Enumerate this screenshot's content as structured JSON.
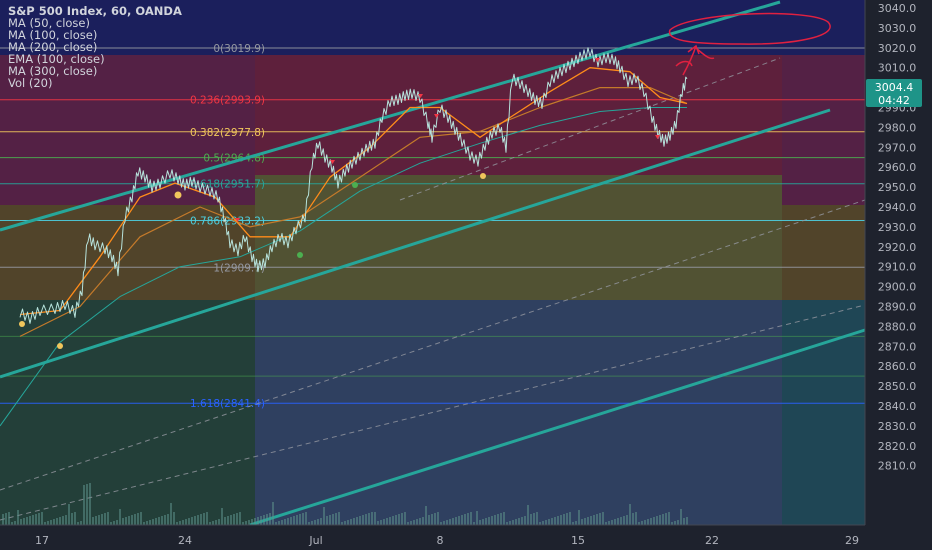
{
  "chart_data": {
    "type": "line",
    "title": "S&P 500 Index, 60, OANDA",
    "indicators": [
      "MA (50, close)",
      "MA (100, close)",
      "MA (200, close)",
      "EMA (100, close)",
      "MA (300, close)",
      "Vol (20)"
    ],
    "y_axis": {
      "ticks": [
        3040,
        3030,
        3020,
        3010,
        3000,
        2990,
        2980,
        2970,
        2960,
        2950,
        2940,
        2930,
        2920,
        2910,
        2900,
        2890,
        2880,
        2870,
        2860,
        2850,
        2840,
        2830,
        2820,
        2810
      ],
      "range": [
        2805,
        3044
      ]
    },
    "x_axis": {
      "tick_labels": [
        "17",
        "24",
        "Jul",
        "8",
        "15",
        "22",
        "29"
      ]
    },
    "last_price": "3004.4",
    "countdown": "04:42",
    "fib_levels": [
      {
        "label": "0(3019.9)",
        "value": 3019.9,
        "color": "#9598a1"
      },
      {
        "label": "0.236(2993.9)",
        "value": 2993.9,
        "color": "#f23645"
      },
      {
        "label": "0.382(2977.8)",
        "value": 2977.8,
        "color": "#f0c65c"
      },
      {
        "label": "0.5(2964.8)",
        "value": 2964.8,
        "color": "#4caf50"
      },
      {
        "label": "0.618(2951.7)",
        "value": 2951.7,
        "color": "#26a69a"
      },
      {
        "label": "0.786(2933.2)",
        "value": 2933.2,
        "color": "#4dd0e1"
      },
      {
        "label": "1(2909.7)",
        "value": 2909.7,
        "color": "#9598a1"
      },
      {
        "label": "1.618(2841.4)",
        "value": 2841.4,
        "color": "#2962ff"
      }
    ],
    "price_series": [
      [
        20,
        2887
      ],
      [
        30,
        2884
      ],
      [
        40,
        2888
      ],
      [
        55,
        2889
      ],
      [
        65,
        2891
      ],
      [
        75,
        2887
      ],
      [
        82,
        2898
      ],
      [
        88,
        2925
      ],
      [
        95,
        2921
      ],
      [
        105,
        2919
      ],
      [
        112,
        2915
      ],
      [
        118,
        2908
      ],
      [
        125,
        2935
      ],
      [
        132,
        2945
      ],
      [
        138,
        2958
      ],
      [
        145,
        2955
      ],
      [
        152,
        2950
      ],
      [
        160,
        2952
      ],
      [
        170,
        2957
      ],
      [
        178,
        2954
      ],
      [
        185,
        2951
      ],
      [
        192,
        2953
      ],
      [
        200,
        2950
      ],
      [
        210,
        2948
      ],
      [
        218,
        2945
      ],
      [
        224,
        2935
      ],
      [
        230,
        2922
      ],
      [
        238,
        2918
      ],
      [
        245,
        2925
      ],
      [
        252,
        2915
      ],
      [
        258,
        2910
      ],
      [
        265,
        2912
      ],
      [
        272,
        2920
      ],
      [
        280,
        2925
      ],
      [
        288,
        2922
      ],
      [
        296,
        2929
      ],
      [
        305,
        2935
      ],
      [
        312,
        2962
      ],
      [
        318,
        2972
      ],
      [
        325,
        2965
      ],
      [
        332,
        2960
      ],
      [
        338,
        2952
      ],
      [
        345,
        2958
      ],
      [
        352,
        2962
      ],
      [
        360,
        2966
      ],
      [
        368,
        2970
      ],
      [
        375,
        2972
      ],
      [
        382,
        2985
      ],
      [
        390,
        2993
      ],
      [
        398,
        2994
      ],
      [
        405,
        2996
      ],
      [
        412,
        2997
      ],
      [
        420,
        2995
      ],
      [
        428,
        2982
      ],
      [
        432,
        2975
      ],
      [
        440,
        2990
      ],
      [
        448,
        2985
      ],
      [
        455,
        2979
      ],
      [
        462,
        2973
      ],
      [
        470,
        2966
      ],
      [
        478,
        2963
      ],
      [
        485,
        2971
      ],
      [
        492,
        2977
      ],
      [
        500,
        2980
      ],
      [
        506,
        2970
      ],
      [
        512,
        3005
      ],
      [
        520,
        3002
      ],
      [
        528,
        2998
      ],
      [
        535,
        2994
      ],
      [
        542,
        2992
      ],
      [
        550,
        3003
      ],
      [
        558,
        3007
      ],
      [
        566,
        3010
      ],
      [
        574,
        3013
      ],
      [
        582,
        3016
      ],
      [
        590,
        3018
      ],
      [
        598,
        3013
      ],
      [
        606,
        3015
      ],
      [
        614,
        3014
      ],
      [
        620,
        3010
      ],
      [
        628,
        3003
      ],
      [
        636,
        3005
      ],
      [
        644,
        2998
      ],
      [
        652,
        2985
      ],
      [
        658,
        2977
      ],
      [
        664,
        2973
      ],
      [
        670,
        2976
      ],
      [
        676,
        2982
      ],
      [
        682,
        2998
      ],
      [
        687,
        3004.4
      ]
    ],
    "ma_fast": [
      [
        20,
        2886
      ],
      [
        60,
        2888
      ],
      [
        100,
        2915
      ],
      [
        140,
        2945
      ],
      [
        175,
        2952
      ],
      [
        215,
        2945
      ],
      [
        250,
        2925
      ],
      [
        290,
        2925
      ],
      [
        330,
        2955
      ],
      [
        370,
        2970
      ],
      [
        410,
        2990
      ],
      [
        440,
        2990
      ],
      [
        480,
        2975
      ],
      [
        510,
        2985
      ],
      [
        550,
        2998
      ],
      [
        590,
        3010
      ],
      [
        630,
        3008
      ],
      [
        660,
        2995
      ],
      [
        687,
        2992
      ]
    ],
    "ma_slow": [
      [
        20,
        2875
      ],
      [
        80,
        2890
      ],
      [
        140,
        2925
      ],
      [
        200,
        2940
      ],
      [
        250,
        2930
      ],
      [
        300,
        2935
      ],
      [
        360,
        2955
      ],
      [
        420,
        2975
      ],
      [
        480,
        2978
      ],
      [
        540,
        2990
      ],
      [
        600,
        3000
      ],
      [
        650,
        3000
      ],
      [
        687,
        2992
      ]
    ],
    "ma_long": [
      [
        0,
        2830
      ],
      [
        60,
        2872
      ],
      [
        120,
        2895
      ],
      [
        180,
        2910
      ],
      [
        240,
        2915
      ],
      [
        300,
        2928
      ],
      [
        360,
        2948
      ],
      [
        420,
        2962
      ],
      [
        480,
        2972
      ],
      [
        540,
        2981
      ],
      [
        600,
        2988
      ],
      [
        650,
        2990
      ],
      [
        687,
        2990
      ]
    ]
  }
}
